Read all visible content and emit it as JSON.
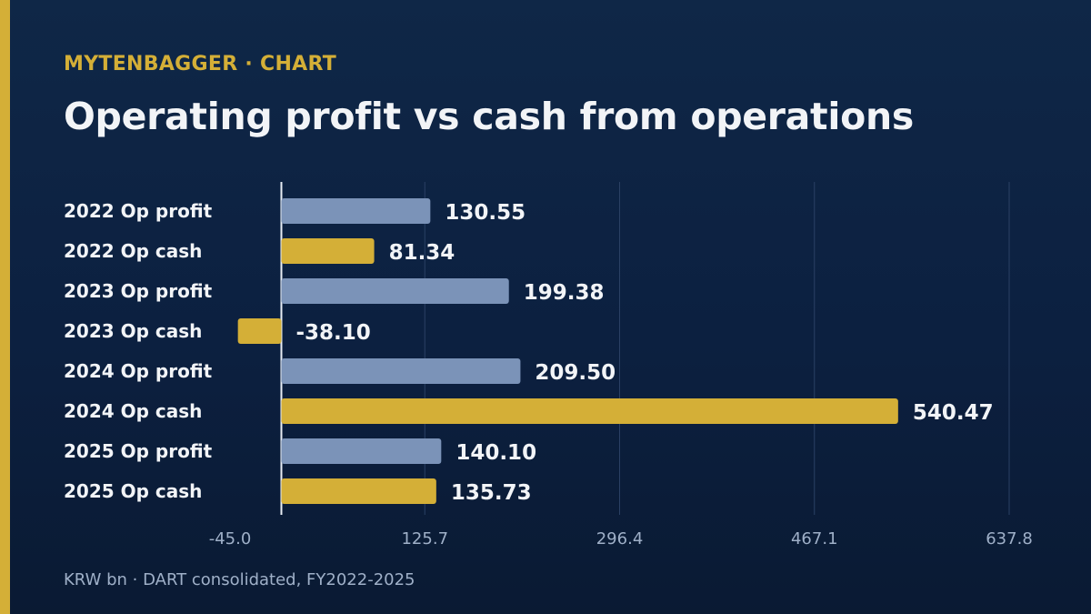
{
  "header": {
    "kicker": "MYTENBAGGER · CHART",
    "title": "Operating profit vs cash from operations"
  },
  "footer": {
    "note": "KRW bn · DART consolidated, FY2022-2025"
  },
  "colors": {
    "background": "#0c2040",
    "accent": "#d4af37",
    "op_profit": "#7b93b8",
    "op_cash": "#d4af37",
    "label_text": "#f2f4f7",
    "tick_text": "#9fb0c8",
    "grid": "#2a4064",
    "zero_line": "#e8edf4"
  },
  "chart_data": {
    "type": "bar",
    "orientation": "horizontal",
    "title": "Operating profit vs cash from operations",
    "categories": [
      "2022 Op profit",
      "2022 Op cash",
      "2023 Op profit",
      "2023 Op cash",
      "2024 Op profit",
      "2024 Op cash",
      "2025 Op profit",
      "2025 Op cash"
    ],
    "values": [
      130.55,
      81.34,
      199.38,
      -38.1,
      209.5,
      540.47,
      140.1,
      135.73
    ],
    "value_labels": [
      "130.55",
      "81.34",
      "199.38",
      "-38.10",
      "209.50",
      "540.47",
      "140.10",
      "135.73"
    ],
    "bar_kind": [
      "op_profit",
      "op_cash",
      "op_profit",
      "op_cash",
      "op_profit",
      "op_cash",
      "op_profit",
      "op_cash"
    ],
    "xticks": [
      -45.0,
      125.7,
      296.4,
      467.1,
      637.8
    ],
    "xtick_labels": [
      "-45.0",
      "125.7",
      "296.4",
      "467.1",
      "637.8"
    ],
    "xlim": [
      -45.0,
      637.8
    ],
    "zero_line": true,
    "grid": "vertical",
    "legend": "none",
    "units": "KRW bn"
  }
}
